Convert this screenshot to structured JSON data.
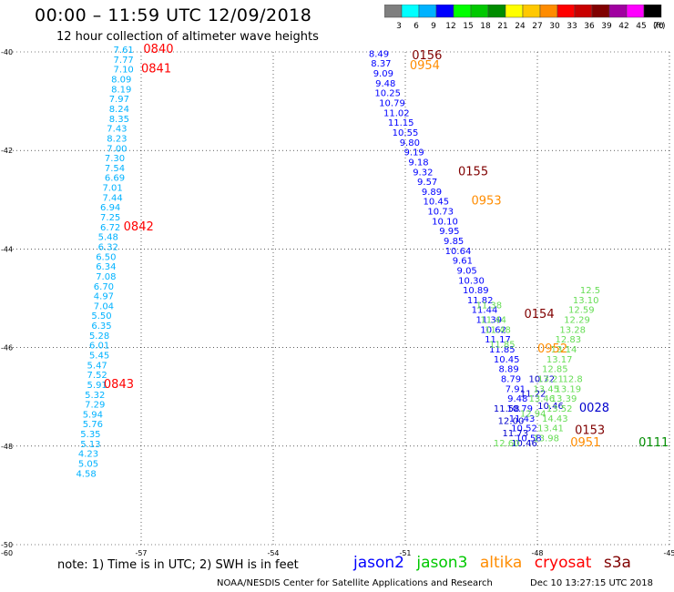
{
  "header": {
    "title": "00:00 – 11:59 UTC 12/09/2018",
    "subtitle": "12 hour collection of altimeter wave heights"
  },
  "colorbar": {
    "ticks": [
      "3",
      "6",
      "9",
      "12",
      "15",
      "18",
      "21",
      "24",
      "27",
      "30",
      "33",
      "36",
      "39",
      "42",
      "45",
      "70"
    ],
    "unit": "(ft)",
    "colors": [
      "#7f7f7f",
      "#00ffff",
      "#00b2ff",
      "#0000ff",
      "#00ff00",
      "#00c800",
      "#008c00",
      "#ffff00",
      "#ffc800",
      "#ff8c00",
      "#ff0000",
      "#c80000",
      "#800000",
      "#a000a0",
      "#ff00ff",
      "#000000"
    ]
  },
  "footer": {
    "note": "note:  1) Time is in UTC;  2) SWH is in feet",
    "legend": [
      {
        "name": "jason2",
        "color": "#0000ff"
      },
      {
        "name": "jason3",
        "color": "#00c800"
      },
      {
        "name": "altika",
        "color": "#ff8c00"
      },
      {
        "name": "cryosat",
        "color": "#ff0000"
      },
      {
        "name": "s3a",
        "color": "#800000"
      }
    ],
    "credit": "NOAA/NESDIS Center for Satellite Applications and Research",
    "timestamp": "Dec 10 13:27:15 UTC 2018"
  },
  "chart_data": {
    "type": "scatter",
    "xlim": [
      -60,
      -45
    ],
    "ylim": [
      -50,
      -40
    ],
    "xticks": [
      -57,
      -54,
      -51,
      -48,
      -45
    ],
    "yticks": [
      -40,
      -42,
      -44,
      -46,
      -48,
      -50
    ],
    "xtick_labels": [
      "-57",
      "-54",
      "-51",
      "-48",
      "-45"
    ],
    "ytick_labels": [
      "-40",
      "-42",
      "-44",
      "-46",
      "-48",
      "-50"
    ],
    "origin_label": "-60",
    "grid": "dotted",
    "series": [
      {
        "name": "cryosat",
        "color": "#00b2ff",
        "points": [
          {
            "x": -57.4,
            "y": -40.02,
            "v": "7.61"
          },
          {
            "x": -57.4,
            "y": -40.22,
            "v": "7.77"
          },
          {
            "x": -57.4,
            "y": -40.42,
            "v": "7.10"
          },
          {
            "x": -57.45,
            "y": -40.62,
            "v": "8.09"
          },
          {
            "x": -57.45,
            "y": -40.82,
            "v": "8.19"
          },
          {
            "x": -57.5,
            "y": -41.02,
            "v": "7.97"
          },
          {
            "x": -57.5,
            "y": -41.22,
            "v": "8.24"
          },
          {
            "x": -57.5,
            "y": -41.42,
            "v": "8.35"
          },
          {
            "x": -57.55,
            "y": -41.62,
            "v": "7.43"
          },
          {
            "x": -57.55,
            "y": -41.82,
            "v": "8.23"
          },
          {
            "x": -57.55,
            "y": -42.02,
            "v": "7.00"
          },
          {
            "x": -57.6,
            "y": -42.22,
            "v": "7.30"
          },
          {
            "x": -57.6,
            "y": -42.42,
            "v": "7.54"
          },
          {
            "x": -57.6,
            "y": -42.62,
            "v": "6.69"
          },
          {
            "x": -57.65,
            "y": -42.82,
            "v": "7.01"
          },
          {
            "x": -57.65,
            "y": -43.02,
            "v": "7.44"
          },
          {
            "x": -57.7,
            "y": -43.22,
            "v": "6.94"
          },
          {
            "x": -57.7,
            "y": -43.42,
            "v": "7.25"
          },
          {
            "x": -57.7,
            "y": -43.62,
            "v": "6.72"
          },
          {
            "x": -57.75,
            "y": -43.82,
            "v": "5.48"
          },
          {
            "x": -57.75,
            "y": -44.02,
            "v": "6.32"
          },
          {
            "x": -57.8,
            "y": -44.22,
            "v": "6.50"
          },
          {
            "x": -57.8,
            "y": -44.42,
            "v": "6.34"
          },
          {
            "x": -57.8,
            "y": -44.62,
            "v": "7.08"
          },
          {
            "x": -57.85,
            "y": -44.82,
            "v": "6.70"
          },
          {
            "x": -57.85,
            "y": -45.02,
            "v": "4.97"
          },
          {
            "x": -57.85,
            "y": -45.22,
            "v": "7.04"
          },
          {
            "x": -57.9,
            "y": -45.42,
            "v": "5.50"
          },
          {
            "x": -57.9,
            "y": -45.62,
            "v": "6.35"
          },
          {
            "x": -57.95,
            "y": -45.82,
            "v": "5.28"
          },
          {
            "x": -57.95,
            "y": -46.02,
            "v": "6.01"
          },
          {
            "x": -57.95,
            "y": -46.22,
            "v": "5.45"
          },
          {
            "x": -58.0,
            "y": -46.42,
            "v": "5.47"
          },
          {
            "x": -58.0,
            "y": -46.62,
            "v": "7.52"
          },
          {
            "x": -58.0,
            "y": -46.82,
            "v": "5.91"
          },
          {
            "x": -58.05,
            "y": -47.02,
            "v": "5.32"
          },
          {
            "x": -58.05,
            "y": -47.22,
            "v": "7.29"
          },
          {
            "x": -58.1,
            "y": -47.42,
            "v": "5.94"
          },
          {
            "x": -58.1,
            "y": -47.62,
            "v": "5.76"
          },
          {
            "x": -58.15,
            "y": -47.82,
            "v": "5.35"
          },
          {
            "x": -58.15,
            "y": -48.02,
            "v": "5.13"
          },
          {
            "x": -58.2,
            "y": -48.22,
            "v": "4.23"
          },
          {
            "x": -58.2,
            "y": -48.42,
            "v": "5.05"
          },
          {
            "x": -58.25,
            "y": -48.62,
            "v": "4.58"
          }
        ]
      },
      {
        "name": "s3a",
        "color": "#0000ff",
        "points": [
          {
            "x": -51.6,
            "y": -40.1,
            "v": "8.49"
          },
          {
            "x": -51.55,
            "y": -40.3,
            "v": "8.37"
          },
          {
            "x": -51.5,
            "y": -40.5,
            "v": "9.09"
          },
          {
            "x": -51.45,
            "y": -40.7,
            "v": "9.48"
          },
          {
            "x": -51.4,
            "y": -40.9,
            "v": "10.25"
          },
          {
            "x": -51.3,
            "y": -41.1,
            "v": "10.79"
          },
          {
            "x": -51.2,
            "y": -41.3,
            "v": "11.02"
          },
          {
            "x": -51.1,
            "y": -41.5,
            "v": "11.15"
          },
          {
            "x": -51.0,
            "y": -41.7,
            "v": "10.55"
          },
          {
            "x": -50.9,
            "y": -41.9,
            "v": "9.80"
          },
          {
            "x": -50.8,
            "y": -42.1,
            "v": "9.19"
          },
          {
            "x": -50.7,
            "y": -42.3,
            "v": "9.18"
          },
          {
            "x": -50.6,
            "y": -42.5,
            "v": "9.32"
          },
          {
            "x": -50.5,
            "y": -42.7,
            "v": "9.57"
          },
          {
            "x": -50.4,
            "y": -42.9,
            "v": "9.89"
          },
          {
            "x": -50.3,
            "y": -43.1,
            "v": "10.45"
          },
          {
            "x": -50.2,
            "y": -43.3,
            "v": "10.73"
          },
          {
            "x": -50.1,
            "y": -43.5,
            "v": "10.10"
          },
          {
            "x": -50.0,
            "y": -43.7,
            "v": "9.95"
          },
          {
            "x": -49.9,
            "y": -43.9,
            "v": "9.85"
          },
          {
            "x": -49.8,
            "y": -44.1,
            "v": "10.64"
          },
          {
            "x": -49.7,
            "y": -44.3,
            "v": "9.61"
          },
          {
            "x": -49.6,
            "y": -44.5,
            "v": "9.05"
          },
          {
            "x": -49.5,
            "y": -44.7,
            "v": "10.30"
          },
          {
            "x": -49.4,
            "y": -44.9,
            "v": "10.89"
          },
          {
            "x": -49.3,
            "y": -45.1,
            "v": "11.82"
          },
          {
            "x": -49.2,
            "y": -45.3,
            "v": "11.44"
          },
          {
            "x": -49.1,
            "y": -45.5,
            "v": "11.39"
          },
          {
            "x": -49.0,
            "y": -45.7,
            "v": "10.62"
          },
          {
            "x": -48.9,
            "y": -45.9,
            "v": "11.17"
          },
          {
            "x": -48.8,
            "y": -46.1,
            "v": "11.85"
          },
          {
            "x": -48.7,
            "y": -46.3,
            "v": "10.45"
          },
          {
            "x": -48.65,
            "y": -46.5,
            "v": "8.89"
          },
          {
            "x": -48.6,
            "y": -46.7,
            "v": "8.79"
          },
          {
            "x": -48.5,
            "y": -46.9,
            "v": "7.91"
          },
          {
            "x": -48.45,
            "y": -47.1,
            "v": "9.48"
          },
          {
            "x": -48.4,
            "y": -47.3,
            "v": "10.79"
          },
          {
            "x": -48.35,
            "y": -47.5,
            "v": "11.43"
          },
          {
            "x": -48.3,
            "y": -47.7,
            "v": "10.52"
          },
          {
            "x": -48.2,
            "y": -47.9,
            "v": "10.58"
          }
        ]
      },
      {
        "name": "jason2",
        "color": "#0000cc",
        "points": [
          {
            "x": -48.7,
            "y": -47.3,
            "v": "11.58"
          },
          {
            "x": -48.6,
            "y": -47.55,
            "v": "12.00"
          },
          {
            "x": -48.5,
            "y": -47.8,
            "v": "11.73"
          },
          {
            "x": -48.3,
            "y": -48.0,
            "v": "10.46"
          },
          {
            "x": -48.1,
            "y": -47.0,
            "v": "11.22"
          },
          {
            "x": -47.9,
            "y": -46.7,
            "v": "10.72"
          },
          {
            "x": -47.7,
            "y": -47.25,
            "v": "10.46"
          }
        ]
      },
      {
        "name": "jason3",
        "color": "#66dd55",
        "points": [
          {
            "x": -49.1,
            "y": -45.2,
            "v": "11.38"
          },
          {
            "x": -49.0,
            "y": -45.5,
            "v": "11.44"
          },
          {
            "x": -48.9,
            "y": -45.7,
            "v": "11.48"
          },
          {
            "x": -48.8,
            "y": -46.0,
            "v": "11.85"
          },
          {
            "x": -48.7,
            "y": -48.0,
            "v": "12.60"
          },
          {
            "x": -48.1,
            "y": -47.4,
            "v": "12.94"
          },
          {
            "x": -47.9,
            "y": -47.1,
            "v": "13.46"
          },
          {
            "x": -47.8,
            "y": -46.9,
            "v": "13.45"
          },
          {
            "x": -47.7,
            "y": -46.7,
            "v": "13.21"
          },
          {
            "x": -47.6,
            "y": -46.5,
            "v": "12.85"
          },
          {
            "x": -47.5,
            "y": -46.3,
            "v": "13.17"
          },
          {
            "x": -47.4,
            "y": -46.1,
            "v": "13.14"
          },
          {
            "x": -47.3,
            "y": -45.9,
            "v": "12.83"
          },
          {
            "x": -47.2,
            "y": -45.7,
            "v": "13.28"
          },
          {
            "x": -47.1,
            "y": -45.5,
            "v": "12.29"
          },
          {
            "x": -47.0,
            "y": -45.3,
            "v": "12.59"
          },
          {
            "x": -46.9,
            "y": -45.1,
            "v": "13.10"
          },
          {
            "x": -46.8,
            "y": -44.9,
            "v": "12.5"
          },
          {
            "x": -47.8,
            "y": -47.9,
            "v": "13.98"
          },
          {
            "x": -47.7,
            "y": -47.7,
            "v": "13.41"
          },
          {
            "x": -47.6,
            "y": -47.5,
            "v": "14.43"
          },
          {
            "x": -47.5,
            "y": -47.3,
            "v": "13.52"
          },
          {
            "x": -47.4,
            "y": -47.1,
            "v": "13.39"
          },
          {
            "x": -47.3,
            "y": -46.9,
            "v": "13.19"
          },
          {
            "x": -47.2,
            "y": -46.7,
            "v": "12.8"
          }
        ]
      }
    ],
    "annotations": [
      {
        "text": "0840",
        "x": -56.95,
        "y": -40.02,
        "color": "#ff0000"
      },
      {
        "text": "0841",
        "x": -57.0,
        "y": -40.42,
        "color": "#ff0000"
      },
      {
        "text": "0842",
        "x": -57.4,
        "y": -43.62,
        "color": "#ff0000"
      },
      {
        "text": "0843",
        "x": -57.85,
        "y": -46.82,
        "color": "#ff0000"
      },
      {
        "text": "0156",
        "x": -50.85,
        "y": -40.15,
        "color": "#800000"
      },
      {
        "text": "0954",
        "x": -50.9,
        "y": -40.35,
        "color": "#ff8c00"
      },
      {
        "text": "0155",
        "x": -49.8,
        "y": -42.5,
        "color": "#800000"
      },
      {
        "text": "0953",
        "x": -49.5,
        "y": -43.1,
        "color": "#ff8c00"
      },
      {
        "text": "0154",
        "x": -48.3,
        "y": -45.4,
        "color": "#800000"
      },
      {
        "text": "0952",
        "x": -48.0,
        "y": -46.1,
        "color": "#ff8c00"
      },
      {
        "text": "0028",
        "x": -47.05,
        "y": -47.3,
        "color": "#0000cc"
      },
      {
        "text": "0153",
        "x": -47.15,
        "y": -47.75,
        "color": "#800000"
      },
      {
        "text": "0951",
        "x": -47.25,
        "y": -48.0,
        "color": "#ff8c00"
      },
      {
        "text": "0111",
        "x": -45.7,
        "y": -48.0,
        "color": "#008c00"
      }
    ]
  }
}
